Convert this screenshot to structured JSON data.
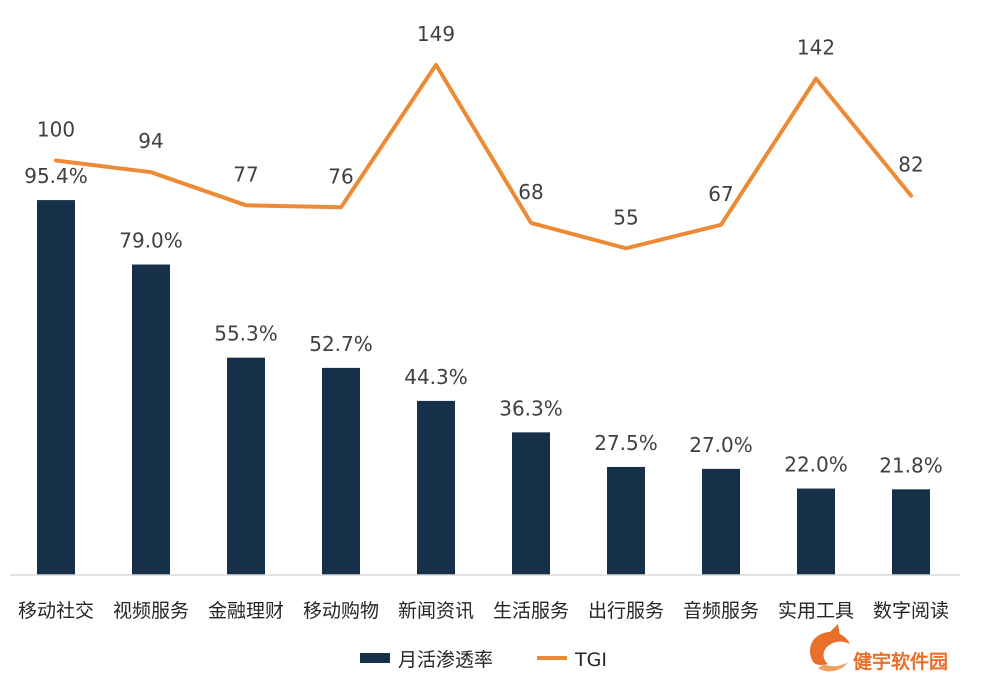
{
  "chart_data": {
    "type": "bar",
    "categories": [
      "移动社交",
      "视频服务",
      "金融理财",
      "移动购物",
      "新闻资讯",
      "生活服务",
      "出行服务",
      "音频服务",
      "实用工具",
      "数字阅读"
    ],
    "series": [
      {
        "name": "月活渗透率",
        "type": "bar",
        "values": [
          95.4,
          79.0,
          55.3,
          52.7,
          44.3,
          36.3,
          27.5,
          27.0,
          22.0,
          21.8
        ],
        "labels": [
          "95.4%",
          "79.0%",
          "55.3%",
          "52.7%",
          "44.3%",
          "36.3%",
          "27.5%",
          "27.0%",
          "22.0%",
          "21.8%"
        ],
        "color": "#17304a"
      },
      {
        "name": "TGI",
        "type": "line",
        "values": [
          100,
          94,
          77,
          76,
          149,
          68,
          55,
          67,
          142,
          82
        ],
        "labels": [
          "100",
          "94",
          "77",
          "76",
          "149",
          "68",
          "55",
          "67",
          "142",
          "82"
        ],
        "color": "#ed8a35"
      }
    ],
    "legend": "bottom"
  },
  "watermark": {
    "text": "健宇软件园",
    "color": "#e8702a"
  }
}
